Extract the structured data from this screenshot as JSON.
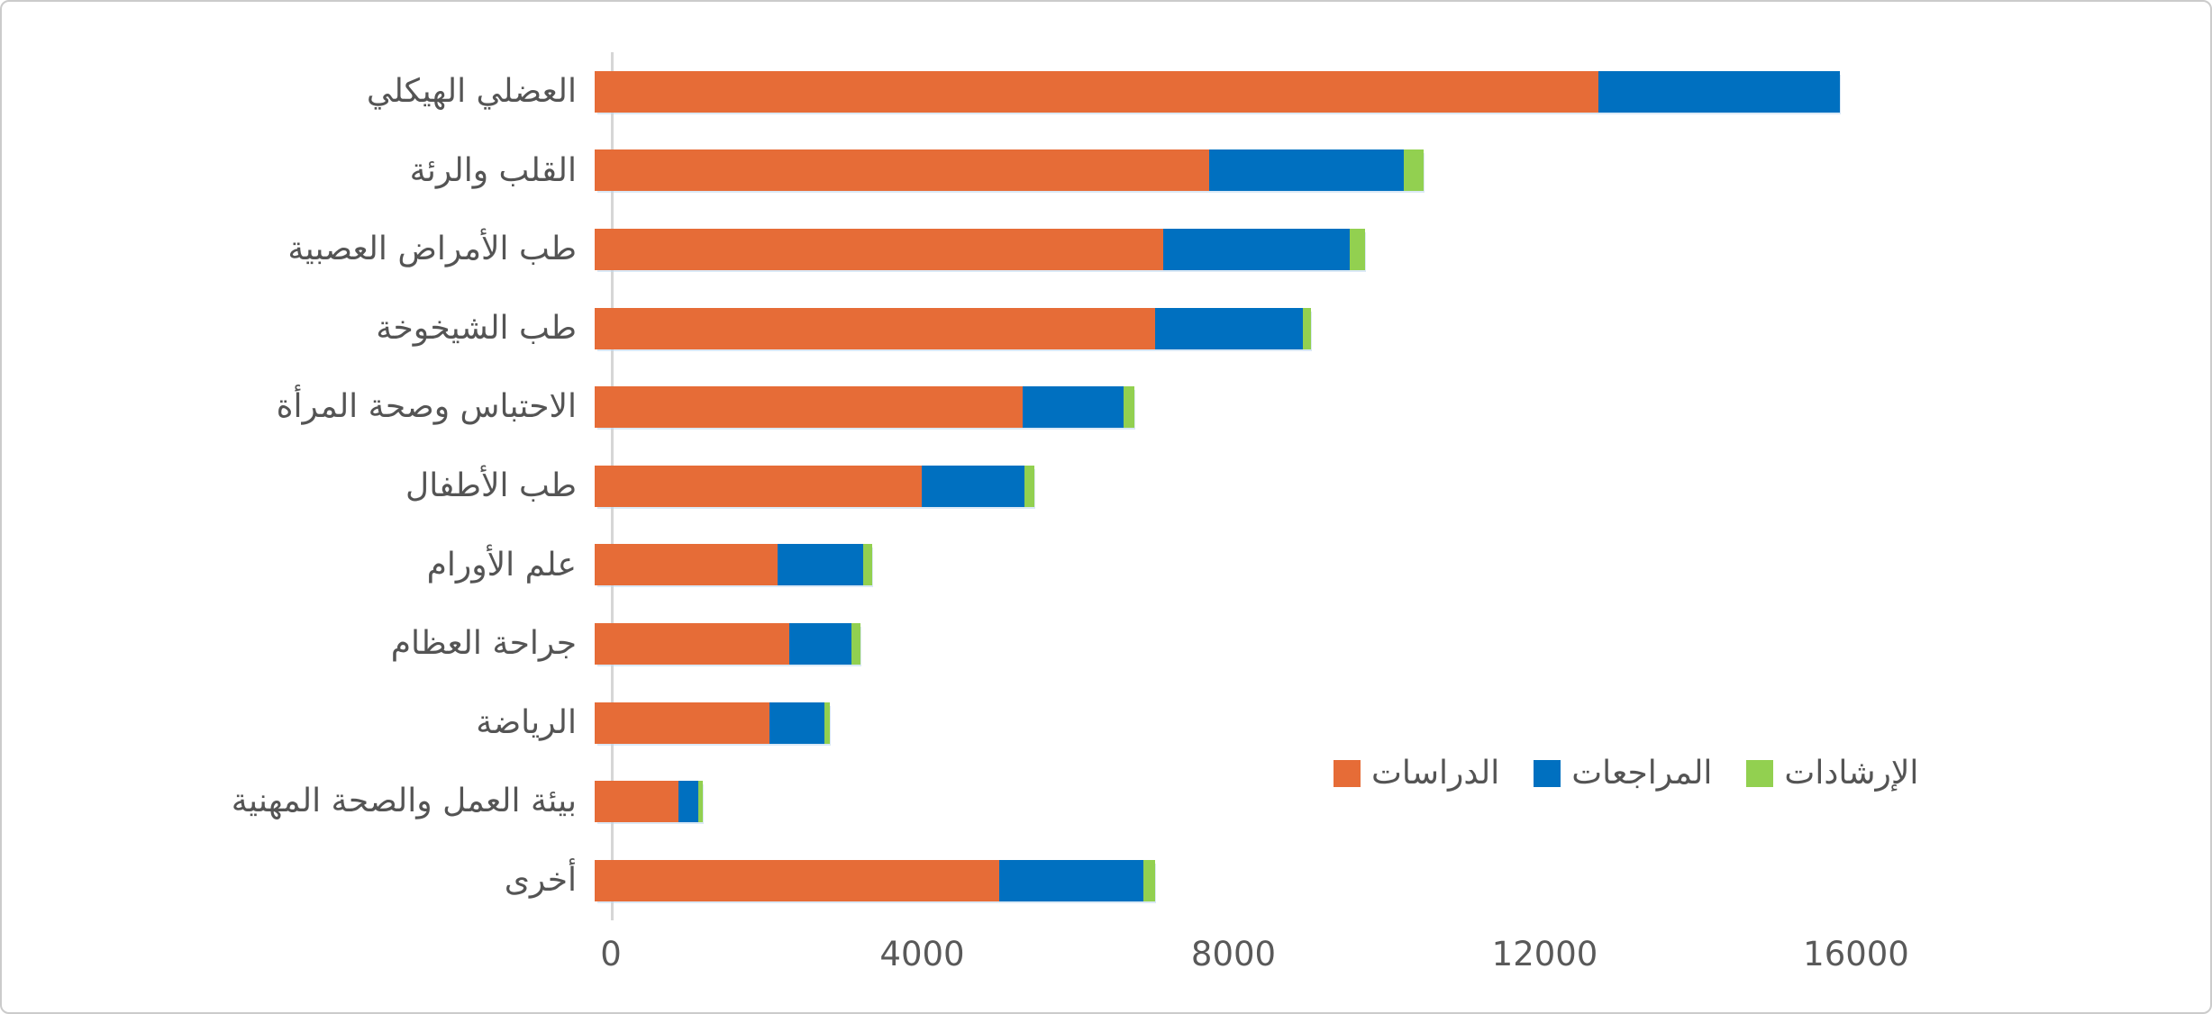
{
  "chart_data": {
    "type": "bar",
    "orientation": "horizontal-stacked",
    "title": "",
    "xlabel": "",
    "ylabel": "",
    "categories": [
      "العضلي الهيكلي",
      "القلب والرئة",
      "طب الأمراض العصبية",
      "طب الشيخوخة",
      "الاحتباس وصحة المرأة",
      "طب الأطفال",
      "علم الأورام",
      "جراحة العظام",
      "الرياضة",
      "بيئة العمل والصحة المهنية",
      "أخرى"
    ],
    "series": [
      {
        "name": "الدراسات",
        "color": "#E66C37",
        "values": [
          12900,
          7900,
          7300,
          7200,
          5500,
          4200,
          2350,
          2500,
          2250,
          1080,
          5200
        ]
      },
      {
        "name": "المراجعات",
        "color": "#0070C0",
        "values": [
          3100,
          2500,
          2400,
          1900,
          1300,
          1320,
          1100,
          800,
          700,
          250,
          1850
        ]
      },
      {
        "name": "الإرشادات",
        "color": "#92D050",
        "values": [
          0,
          250,
          200,
          100,
          130,
          130,
          120,
          120,
          70,
          60,
          150
        ]
      }
    ],
    "x_ticks": [
      "0",
      "4000",
      "8000",
      "12000",
      "16000"
    ],
    "x_tick_values": [
      0,
      4000,
      8000,
      12000,
      16000
    ],
    "xlim": [
      0,
      20000
    ],
    "grid": false,
    "legend_position": "inside-right-lower",
    "legend": [
      "الدراسات",
      "المراجعات",
      "الإرشادات"
    ]
  },
  "colors": {
    "background": "#FFFFFF",
    "axis_line": "#D6D6D6",
    "tick_text": "#595959",
    "label_text": "#545454",
    "frame_border": "#CBCBCB"
  }
}
